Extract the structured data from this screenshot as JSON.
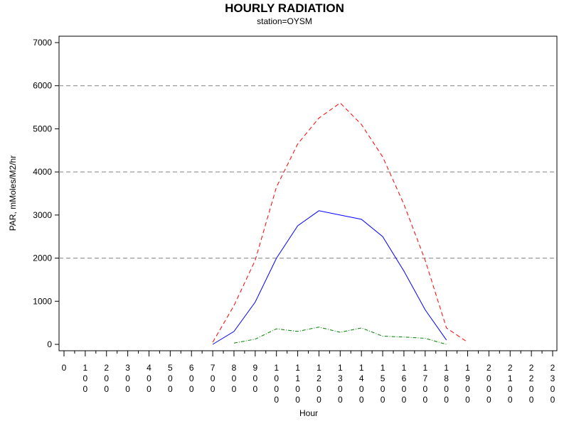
{
  "chart_data": {
    "type": "line",
    "title": "HOURLY RADIATION",
    "subtitle": "station=OYSM",
    "xlabel": "Hour",
    "ylabel": "PAR, mMoles/M2/hr",
    "xlim": [
      0,
      2300
    ],
    "ylim": [
      0,
      7000
    ],
    "y_ticks": [
      0,
      1000,
      2000,
      3000,
      4000,
      5000,
      6000,
      7000
    ],
    "x_ticks": [
      0,
      100,
      200,
      300,
      400,
      500,
      600,
      700,
      800,
      900,
      1000,
      1100,
      1200,
      1300,
      1400,
      1500,
      1600,
      1700,
      1800,
      1900,
      2000,
      2100,
      2200,
      2300
    ],
    "x_tick_labels": [
      "0",
      "100",
      "200",
      "300",
      "400",
      "500",
      "600",
      "700",
      "800",
      "900",
      "1000",
      "1100",
      "1200",
      "1300",
      "1400",
      "1500",
      "1600",
      "1700",
      "1800",
      "1900",
      "2000",
      "2100",
      "2200",
      "2300"
    ],
    "reference_lines": [
      2000,
      4000,
      6000
    ],
    "grid": false,
    "series": [
      {
        "color": "#ff0000",
        "style": "dashed",
        "x": [
          700,
          800,
          900,
          1000,
          1100,
          1200,
          1300,
          1400,
          1500,
          1600,
          1700,
          1800,
          1900
        ],
        "y": [
          50,
          900,
          1950,
          3650,
          4650,
          5250,
          5600,
          5100,
          4350,
          3250,
          1950,
          380,
          50
        ]
      },
      {
        "color": "#0000ff",
        "style": "solid",
        "x": [
          700,
          800,
          900,
          1000,
          1100,
          1200,
          1300,
          1400,
          1500,
          1600,
          1700,
          1800
        ],
        "y": [
          0,
          300,
          980,
          2000,
          2750,
          3100,
          3000,
          2900,
          2500,
          1700,
          800,
          100
        ]
      },
      {
        "color": "#008000",
        "style": "dashdot",
        "x": [
          800,
          900,
          1000,
          1100,
          1200,
          1300,
          1400,
          1500,
          1600,
          1700,
          1800
        ],
        "y": [
          30,
          120,
          360,
          300,
          400,
          280,
          380,
          190,
          170,
          140,
          0
        ]
      }
    ]
  }
}
